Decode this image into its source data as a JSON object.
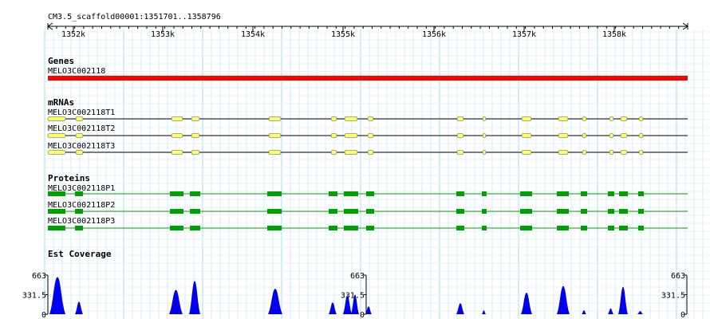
{
  "region": "CM3.5_scaffold00001:1351701..1358796",
  "ruler": {
    "ticks": [
      "1352k",
      "1353k",
      "1354k",
      "1355k",
      "1356k",
      "1357k",
      "1358k"
    ]
  },
  "tracks": {
    "genes": {
      "title": "Genes",
      "items": [
        {
          "name": "MELO3C002118",
          "color": "#ff0000"
        }
      ]
    },
    "mrnas": {
      "title": "mRNAs",
      "color": "#ffff66",
      "items": [
        {
          "name": "MELO3C002118T1"
        },
        {
          "name": "MELO3C002118T2"
        },
        {
          "name": "MELO3C002118T3"
        }
      ]
    },
    "proteins": {
      "title": "Proteins",
      "color": "#00a000",
      "items": [
        {
          "name": "MELO3C002118P1"
        },
        {
          "name": "MELO3C002118P2"
        },
        {
          "name": "MELO3C002118P3"
        }
      ]
    },
    "est": {
      "title": "Est Coverage",
      "color": "#0000ee",
      "axis_labels": [
        "663",
        "331.5",
        "0"
      ]
    }
  }
}
